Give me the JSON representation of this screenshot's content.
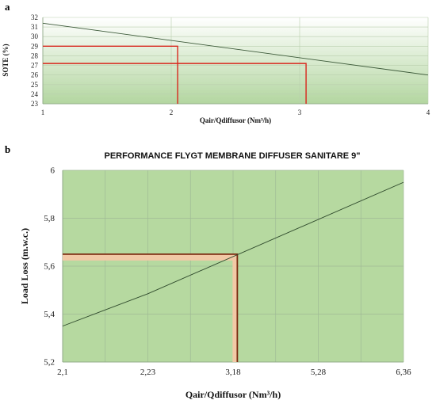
{
  "panel_a": {
    "letter": "a",
    "chart_data": {
      "type": "line",
      "title": "",
      "xlabel": "Qair/Qdiffusor (Nm³/h)",
      "ylabel": "SOTE (%)",
      "xlim": [
        1,
        4
      ],
      "ylim": [
        23,
        32
      ],
      "x_ticks": [
        1,
        2,
        3,
        4
      ],
      "y_ticks": [
        23,
        24,
        25,
        26,
        27,
        28,
        29,
        30,
        31,
        32
      ],
      "x_tick_labels": [
        "1",
        "2",
        "3",
        "4"
      ],
      "y_tick_labels": [
        "23",
        "24",
        "25",
        "26",
        "27",
        "28",
        "29",
        "30",
        "31",
        "32"
      ],
      "grid": true,
      "series": [
        {
          "x": [
            1,
            4
          ],
          "y": [
            31.4,
            26.0
          ],
          "color": "#3d5a3a"
        }
      ],
      "markers": [
        {
          "x": 2.05,
          "y": 29.0,
          "color": "#d9261c"
        },
        {
          "x": 3.05,
          "y": 27.2,
          "color": "#d9261c"
        }
      ],
      "background": {
        "top": "#ffffff",
        "bottom": "#b3d6a0"
      }
    }
  },
  "panel_b": {
    "letter": "b",
    "chart_data": {
      "type": "line",
      "title": "PERFORMANCE FLYGT MEMBRANE DIFFUSER SANITARE 9\"",
      "xlabel": "Qair/Qdiffusor (Nm³/h)",
      "ylabel": "Load Loss (m.w.c.)",
      "xlim": [
        0,
        8
      ],
      "ylim": [
        5.2,
        6.0
      ],
      "x_ticks": [
        0,
        2,
        4,
        6,
        8
      ],
      "x_tick_labels": [
        "2,1",
        "2,23",
        "3,18",
        "5,28",
        "6,36"
      ],
      "y_ticks": [
        5.2,
        5.4,
        5.6,
        5.8,
        6.0
      ],
      "y_tick_labels": [
        "5,2",
        "5,4",
        "5,6",
        "5,8",
        "6"
      ],
      "grid": true,
      "series": [
        {
          "x": [
            0,
            2,
            8
          ],
          "y": [
            5.35,
            5.485,
            5.95
          ],
          "color": "#2f4a2c"
        }
      ],
      "markers": [
        {
          "x": 4.1,
          "y": 5.65,
          "color": "#7a2a10",
          "band_color": "#f2c9a6"
        }
      ],
      "background": "#b6d9a0"
    }
  }
}
